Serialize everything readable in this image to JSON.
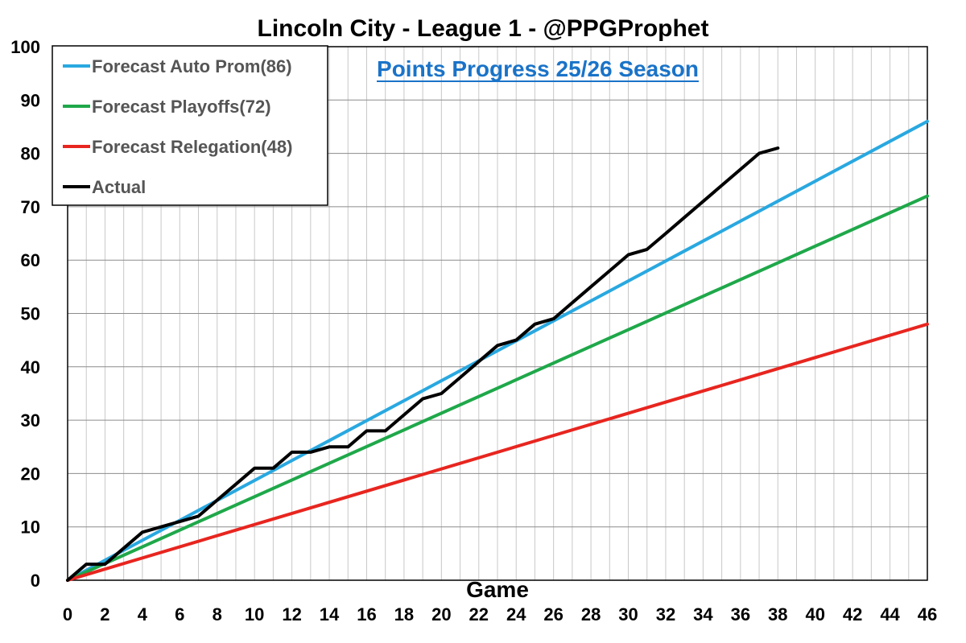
{
  "chart_data": {
    "type": "line",
    "title": "Lincoln City - League 1 - @PPGProphet",
    "subtitle": "Points Progress 25/26 Season",
    "xlabel": "Game",
    "ylabel": "",
    "xlim": [
      0,
      46
    ],
    "ylim": [
      0,
      100
    ],
    "x_ticks": [
      0,
      2,
      4,
      6,
      8,
      10,
      12,
      14,
      16,
      18,
      20,
      22,
      24,
      26,
      28,
      30,
      32,
      34,
      36,
      38,
      40,
      42,
      44,
      46
    ],
    "y_ticks": [
      0,
      10,
      20,
      30,
      40,
      50,
      60,
      70,
      80,
      90,
      100
    ],
    "grid": true,
    "legend_position": "top-left",
    "series": [
      {
        "name": "Forecast Auto Prom(86)",
        "color": "#29a8e0",
        "x": [
          0,
          46
        ],
        "y": [
          0,
          86
        ]
      },
      {
        "name": "Forecast Playoffs(72)",
        "color": "#1fa84a",
        "x": [
          0,
          46
        ],
        "y": [
          0,
          72
        ]
      },
      {
        "name": "Forecast Relegation(48)",
        "color": "#e8251f",
        "x": [
          0,
          46
        ],
        "y": [
          0,
          48
        ]
      },
      {
        "name": "Actual",
        "color": "#000000",
        "x": [
          0,
          1,
          2,
          3,
          4,
          5,
          6,
          7,
          8,
          9,
          10,
          11,
          12,
          13,
          14,
          15,
          16,
          17,
          18,
          19,
          20,
          21,
          22,
          23,
          24,
          25,
          26,
          27,
          28,
          29,
          30,
          31,
          32,
          33,
          34,
          35,
          36,
          37,
          38
        ],
        "y": [
          0,
          3,
          3,
          6,
          9,
          10,
          11,
          12,
          15,
          18,
          21,
          21,
          24,
          24,
          25,
          25,
          28,
          28,
          31,
          34,
          35,
          38,
          41,
          44,
          45,
          48,
          49,
          52,
          55,
          58,
          61,
          62,
          65,
          68,
          71,
          74,
          77,
          80,
          81
        ]
      }
    ]
  }
}
